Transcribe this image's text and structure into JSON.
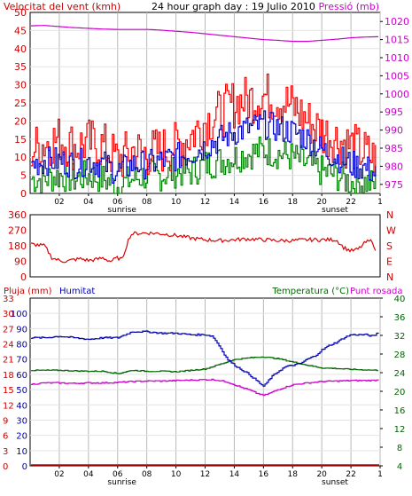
{
  "chart_data": [
    {
      "type": "line",
      "title": "24 hour graph day : 19 Julio 2010",
      "left_axis_title": "Velocitat del vent (kmh)",
      "right_axis_title": "Pressió (mb)",
      "x_ticks": [
        "02",
        "04",
        "06",
        "08",
        "10",
        "12",
        "14",
        "16",
        "18",
        "20",
        "22",
        "1"
      ],
      "x_range": [
        0,
        24
      ],
      "x_markers": [
        {
          "label": "sunrise",
          "x": 6.3
        },
        {
          "label": "sunset",
          "x": 20.9
        }
      ],
      "left_ylim": [
        0,
        50
      ],
      "left_ticks": [
        "0",
        "5",
        "10",
        "15",
        "20",
        "25",
        "30",
        "35",
        "40",
        "45",
        "50"
      ],
      "right_ylim": [
        972.5,
        1022.5
      ],
      "right_ticks": [
        "975",
        "980",
        "985",
        "990",
        "995",
        "1000",
        "1005",
        "1010",
        "1015",
        "1020"
      ],
      "colors": {
        "gust": "#ff0000",
        "average": "#0000cc",
        "minimum": "#008000",
        "pressure": "#cc00cc",
        "grid": "#b8b8b8"
      },
      "series": [
        {
          "key": "gust",
          "axis": "left",
          "x": [
            0,
            1,
            2,
            3,
            4,
            5,
            6,
            7,
            8,
            9,
            10,
            11,
            12,
            13,
            14,
            15,
            16,
            17,
            18,
            19,
            20,
            21,
            22,
            23,
            23.8
          ],
          "y": [
            12,
            14,
            15,
            13,
            14,
            13,
            9,
            12,
            11,
            12,
            13,
            16,
            20,
            22,
            25,
            26,
            27,
            26,
            24,
            20,
            17,
            15,
            13,
            11,
            9
          ]
        },
        {
          "key": "average",
          "axis": "left",
          "x": [
            0,
            1,
            2,
            3,
            4,
            5,
            6,
            7,
            8,
            9,
            10,
            11,
            12,
            13,
            14,
            15,
            16,
            17,
            18,
            19,
            20,
            21,
            22,
            23,
            23.8
          ],
          "y": [
            8,
            9,
            9,
            8,
            9,
            8,
            6,
            8,
            8,
            9,
            10,
            11,
            13,
            15,
            17,
            18,
            19,
            18,
            17,
            15,
            12,
            10,
            8,
            7,
            5
          ]
        },
        {
          "key": "minimum",
          "axis": "left",
          "x": [
            0,
            1,
            2,
            3,
            4,
            5,
            6,
            7,
            8,
            9,
            10,
            11,
            12,
            13,
            14,
            15,
            16,
            17,
            18,
            19,
            20,
            21,
            22,
            23,
            23.8
          ],
          "y": [
            4,
            4,
            5,
            4,
            5,
            4,
            2,
            4,
            5,
            5,
            6,
            6,
            8,
            9,
            10,
            11,
            12,
            11,
            10,
            8,
            6,
            5,
            3,
            3,
            2
          ]
        },
        {
          "key": "pressure",
          "axis": "right",
          "x": [
            0,
            1,
            2,
            3,
            4,
            5,
            6,
            7,
            8,
            9,
            10,
            11,
            12,
            13,
            14,
            15,
            16,
            17,
            18,
            19,
            20,
            21,
            22,
            23,
            24
          ],
          "y": [
            1018.8,
            1018.9,
            1018.6,
            1018.3,
            1018.1,
            1017.9,
            1017.8,
            1017.8,
            1017.8,
            1017.6,
            1017.3,
            1017.0,
            1016.6,
            1016.2,
            1015.8,
            1015.4,
            1015.0,
            1014.8,
            1014.5,
            1014.5,
            1014.8,
            1015.1,
            1015.5,
            1015.7,
            1015.8
          ]
        }
      ]
    },
    {
      "type": "line",
      "left_ylim": [
        0,
        360
      ],
      "left_ticks": [
        "0",
        "90",
        "180",
        "270",
        "360"
      ],
      "right_labels": [
        "N",
        "E",
        "S",
        "W",
        "N"
      ],
      "colors": {
        "direction": "#dd0000"
      },
      "series": [
        {
          "key": "direction",
          "axis": "left",
          "x": [
            0,
            0.5,
            1,
            1.5,
            2,
            2.5,
            3,
            3.5,
            4,
            4.5,
            5,
            5.5,
            6,
            6.3,
            6.8,
            7,
            8,
            9,
            10,
            11,
            12,
            13,
            14,
            15,
            16,
            17,
            18,
            19,
            20,
            21,
            21.5,
            22,
            22.5,
            23,
            23.5,
            23.8
          ],
          "y": [
            190,
            185,
            180,
            110,
            95,
            90,
            100,
            105,
            95,
            100,
            110,
            90,
            110,
            100,
            230,
            250,
            255,
            250,
            240,
            225,
            215,
            210,
            215,
            220,
            215,
            210,
            210,
            215,
            215,
            215,
            170,
            150,
            160,
            200,
            210,
            100
          ]
        }
      ]
    },
    {
      "type": "line",
      "left_axis_title": "Pluja (mm)",
      "middle_axis_title": "Humitat",
      "right_axis_title": "Temperatura (°C)",
      "right_axis_title_2": "Punt rosada",
      "x_ticks": [
        "02",
        "04",
        "06",
        "08",
        "10",
        "12",
        "14",
        "16",
        "18",
        "20",
        "22",
        "1"
      ],
      "x_range": [
        0,
        24
      ],
      "x_markers": [
        {
          "label": "sunrise",
          "x": 6.3
        },
        {
          "label": "sunset",
          "x": 20.9
        }
      ],
      "rain_ticks": [
        "0",
        "3",
        "6",
        "9",
        "12",
        "15",
        "18",
        "21",
        "24",
        "27",
        "30",
        "33"
      ],
      "humidity_ylim": [
        0,
        110
      ],
      "humidity_ticks": [
        "0",
        "10",
        "20",
        "30",
        "40",
        "50",
        "60",
        "70",
        "80",
        "90",
        "100"
      ],
      "temp_ylim": [
        4,
        40
      ],
      "temp_ticks": [
        "4",
        "8",
        "12",
        "16",
        "20",
        "24",
        "28",
        "32",
        "36",
        "40"
      ],
      "colors": {
        "rain": "#cc0000",
        "humidity": "#0000aa",
        "temperature": "#006600",
        "dewpoint": "#cc00cc"
      },
      "series": [
        {
          "key": "rain",
          "axis": "humidity",
          "x": [
            0,
            24
          ],
          "y": [
            0,
            0
          ]
        },
        {
          "key": "humidity",
          "axis": "humidity",
          "x": [
            0,
            1,
            2,
            3,
            4,
            5,
            6,
            7,
            8,
            9,
            10,
            11,
            12,
            12.5,
            13,
            13.5,
            14,
            14.5,
            15,
            15.5,
            16,
            16.5,
            17,
            17.5,
            18,
            18.5,
            19,
            19.5,
            20,
            20.5,
            21,
            21.5,
            22,
            22.5,
            23,
            23.5,
            23.8
          ],
          "y": [
            84,
            84,
            85,
            84,
            83,
            84,
            84,
            88,
            88,
            87,
            87,
            86,
            86,
            85,
            78,
            70,
            66,
            63,
            60,
            56,
            52,
            58,
            62,
            65,
            66,
            67,
            70,
            72,
            76,
            79,
            81,
            84,
            86,
            86,
            86,
            85,
            87
          ]
        },
        {
          "key": "temperature",
          "axis": "temp",
          "x": [
            0,
            1,
            2,
            3,
            4,
            5,
            6,
            7,
            8,
            9,
            10,
            11,
            12,
            13,
            14,
            15,
            16,
            17,
            18,
            19,
            20,
            21,
            22,
            23,
            23.8
          ],
          "y": [
            24.5,
            24.5,
            24.5,
            24.4,
            24.3,
            24.3,
            23.8,
            24.5,
            24.3,
            24.3,
            24.2,
            24.5,
            24.8,
            25.8,
            26.8,
            27.2,
            27.4,
            27.0,
            26.3,
            25.6,
            25.0,
            24.9,
            24.7,
            24.6,
            24.5
          ]
        },
        {
          "key": "dewpoint",
          "axis": "temp",
          "x": [
            0,
            1,
            2,
            3,
            4,
            5,
            6,
            7,
            8,
            9,
            10,
            11,
            12,
            12.5,
            13,
            13.5,
            14,
            14.5,
            15,
            15.5,
            16,
            16.5,
            17,
            17.5,
            18,
            19,
            20,
            21,
            22,
            23,
            23.8
          ],
          "y": [
            21.5,
            21.8,
            21.8,
            21.7,
            21.8,
            21.8,
            21.9,
            22.1,
            22.2,
            22.2,
            22.3,
            22.4,
            22.5,
            22.5,
            22.3,
            22.0,
            21.4,
            20.8,
            20.3,
            19.6,
            19.1,
            19.7,
            20.4,
            20.9,
            21.4,
            21.8,
            22.1,
            22.2,
            22.3,
            22.3,
            22.4
          ]
        }
      ]
    }
  ]
}
